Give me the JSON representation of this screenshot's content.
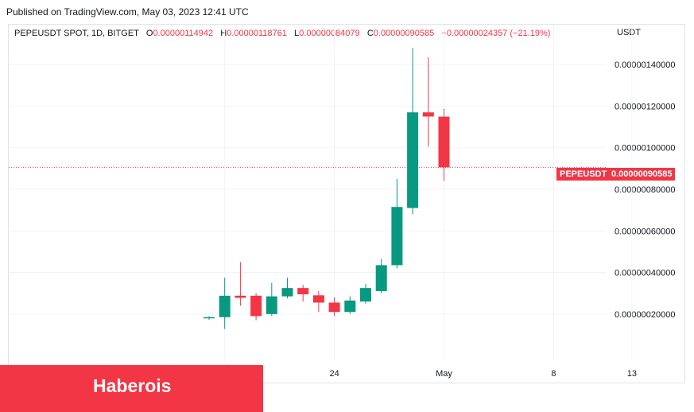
{
  "published": "Published on TradingView.com, May 03, 2023 12:41 UTC",
  "legend": {
    "symbol": "PEPEUSDT SPOT, 1D, BITGET",
    "o_label": "O",
    "o_value": "0.00000114942",
    "h_label": "H",
    "h_value": "0.00000118761",
    "l_label": "L",
    "l_value": "0.00000084079",
    "c_label": "C",
    "c_value": "0.00000090585",
    "change": "−0.00000024357 (−21.19%)"
  },
  "currency": "USDT",
  "last_price": {
    "symbol": "PEPEUSDT",
    "value": "0.00000090585"
  },
  "brand": "Haberois",
  "colors": {
    "up": "#089981",
    "down": "#f23645",
    "grid": "#f0f3fa",
    "text": "#131722"
  },
  "chart_data": {
    "type": "candlestick",
    "ylim": [
      -1.87e-09,
      1.5e-07
    ],
    "yticks": [
      {
        "value": 2e-08,
        "label": "0.00000020000"
      },
      {
        "value": 4e-08,
        "label": "0.00000040000"
      },
      {
        "value": 6e-08,
        "label": "0.00000060000"
      },
      {
        "value": 8e-08,
        "label": "0.00000080000"
      },
      {
        "value": 1e-07,
        "label": "0.00000100000"
      },
      {
        "value": 1.2e-07,
        "label": "0.00000120000"
      },
      {
        "value": 1.4e-07,
        "label": "0.00000140000"
      }
    ],
    "xticks": [
      {
        "date": "2023-04-17",
        "label": ""
      },
      {
        "date": "2023-04-24",
        "label": "24"
      },
      {
        "date": "2023-05-01",
        "label": "May"
      },
      {
        "date": "2023-05-08",
        "label": "8"
      },
      {
        "date": "2023-05-13",
        "label": "13"
      }
    ],
    "last_value": 9.0585e-08,
    "candles": [
      {
        "date": "2023-04-16",
        "open": 1.8e-08,
        "high": 1.9e-08,
        "low": 1.72e-08,
        "close": 1.85e-08
      },
      {
        "date": "2023-04-17",
        "open": 1.85e-08,
        "high": 3.75e-08,
        "low": 1.28e-08,
        "close": 2.88e-08
      },
      {
        "date": "2023-04-18",
        "open": 2.88e-08,
        "high": 4.5e-08,
        "low": 2.4e-08,
        "close": 2.78e-08
      },
      {
        "date": "2023-04-19",
        "open": 2.88e-08,
        "high": 3e-08,
        "low": 1.7e-08,
        "close": 1.9e-08
      },
      {
        "date": "2023-04-20",
        "open": 2e-08,
        "high": 3.5e-08,
        "low": 1.9e-08,
        "close": 2.85e-08
      },
      {
        "date": "2023-04-21",
        "open": 2.85e-08,
        "high": 3.75e-08,
        "low": 2.75e-08,
        "close": 3.25e-08
      },
      {
        "date": "2023-04-22",
        "open": 3.25e-08,
        "high": 3.4e-08,
        "low": 2.6e-08,
        "close": 2.95e-08
      },
      {
        "date": "2023-04-23",
        "open": 2.9e-08,
        "high": 3.1e-08,
        "low": 2.1e-08,
        "close": 2.55e-08
      },
      {
        "date": "2023-04-24",
        "open": 2.55e-08,
        "high": 2.8e-08,
        "low": 1.9e-08,
        "close": 2.1e-08
      },
      {
        "date": "2023-04-25",
        "open": 2.1e-08,
        "high": 2.85e-08,
        "low": 2e-08,
        "close": 2.65e-08
      },
      {
        "date": "2023-04-26",
        "open": 2.6e-08,
        "high": 3.45e-08,
        "low": 2.5e-08,
        "close": 3.25e-08
      },
      {
        "date": "2023-04-27",
        "open": 3.1e-08,
        "high": 4.65e-08,
        "low": 3e-08,
        "close": 4.35e-08
      },
      {
        "date": "2023-04-28",
        "open": 4.35e-08,
        "high": 8.5e-08,
        "low": 4.2e-08,
        "close": 7.15e-08
      },
      {
        "date": "2023-04-29",
        "open": 7.1e-08,
        "high": 1.48e-07,
        "low": 6.8e-08,
        "close": 1.17e-07
      },
      {
        "date": "2023-04-30",
        "open": 1.17e-07,
        "high": 1.435e-07,
        "low": 1.005e-07,
        "close": 1.15e-07
      },
      {
        "date": "2023-05-01",
        "open": 1.1494e-07,
        "high": 1.1876e-07,
        "low": 8.408e-08,
        "close": 9.059e-08
      }
    ]
  }
}
